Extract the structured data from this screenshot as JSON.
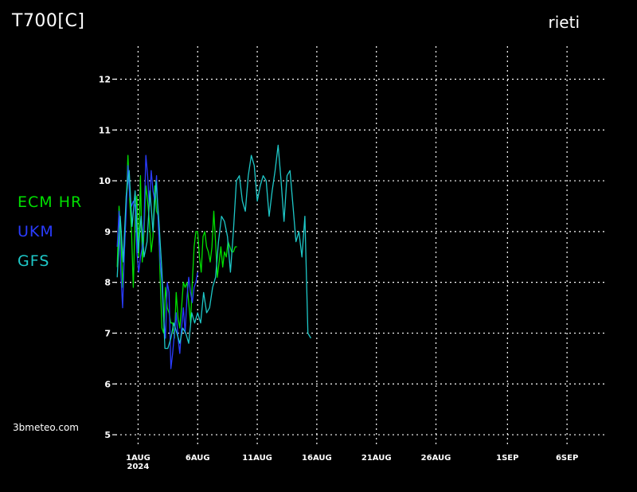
{
  "header": {
    "title": "T700[C]",
    "station": "rieti"
  },
  "credit": "3bmeteo.com",
  "colors": {
    "background": "#000000",
    "grid": "#ffffff",
    "ECM HR": "#00e000",
    "UKM": "#2a3cff",
    "GFS": "#1ec8c8"
  },
  "chart_data": {
    "type": "line",
    "title": "T700[C]",
    "xlabel": "",
    "ylabel": "",
    "x_unit": "days since reference date (ticks labelled)",
    "xlim": [
      -1.9,
      39.4
    ],
    "ylim": [
      4.75,
      12.65
    ],
    "grid": true,
    "legend": "left",
    "y_ticks": [
      5,
      6,
      7,
      8,
      9,
      10,
      11,
      12
    ],
    "x_ticks": [
      {
        "x": 0,
        "label": "1AUG",
        "sublabel": "2024"
      },
      {
        "x": 5,
        "label": "6AUG"
      },
      {
        "x": 10,
        "label": "11AUG"
      },
      {
        "x": 15,
        "label": "16AUG"
      },
      {
        "x": 20,
        "label": "21AUG"
      },
      {
        "x": 25,
        "label": "26AUG"
      },
      {
        "x": 31,
        "label": "1SEP"
      },
      {
        "x": 36,
        "label": "6SEP"
      }
    ],
    "series": [
      {
        "name": "ECM HR",
        "x": [
          -1.75,
          -1.6,
          -1.45,
          -1.3,
          -1.15,
          -1.0,
          -0.85,
          -0.7,
          -0.55,
          -0.4,
          -0.25,
          -0.1,
          0.05,
          0.2,
          0.35,
          0.5,
          0.65,
          0.8,
          0.95,
          1.1,
          1.25,
          1.4,
          1.55,
          1.7,
          1.85,
          2.0,
          2.15,
          2.3,
          2.45,
          2.6,
          2.75,
          2.9,
          3.05,
          3.2,
          3.35,
          3.5,
          3.65,
          3.8,
          3.95,
          4.1,
          4.25,
          4.4,
          4.55,
          4.7,
          4.85,
          5.0,
          5.15,
          5.3,
          5.45,
          5.6,
          5.75,
          5.9,
          6.05,
          6.2,
          6.35,
          6.5,
          6.65,
          6.8,
          6.95,
          7.1,
          7.25,
          7.4,
          7.55,
          7.7,
          7.85,
          8.0,
          8.15,
          8.3
        ],
        "y": [
          8.3,
          9.5,
          9.0,
          7.9,
          8.6,
          9.6,
          10.5,
          9.6,
          9.0,
          7.9,
          9.3,
          9.7,
          8.5,
          10.1,
          8.4,
          9.0,
          9.9,
          9.6,
          9.2,
          8.6,
          8.9,
          9.9,
          9.4,
          9.3,
          8.1,
          7.1,
          7.0,
          7.9,
          7.5,
          7.4,
          7.2,
          7.2,
          6.9,
          7.8,
          7.3,
          7.1,
          7.5,
          8.0,
          7.9,
          8.0,
          7.6,
          7.2,
          8.0,
          8.7,
          9.0,
          9.0,
          8.5,
          8.2,
          8.9,
          9.0,
          8.7,
          8.6,
          8.4,
          8.7,
          9.4,
          8.8,
          8.1,
          8.4,
          8.7,
          8.3,
          8.6,
          8.5,
          8.8,
          8.7,
          8.6,
          8.6,
          8.7,
          8.7
        ]
      },
      {
        "name": "UKM",
        "x": [
          -1.75,
          -1.6,
          -1.45,
          -1.3,
          -1.15,
          -1.0,
          -0.85,
          -0.7,
          -0.55,
          -0.4,
          -0.25,
          -0.1,
          0.05,
          0.2,
          0.35,
          0.5,
          0.65,
          0.8,
          0.95,
          1.1,
          1.25,
          1.4,
          1.55,
          1.7,
          1.85,
          2.0,
          2.15,
          2.3,
          2.45,
          2.6,
          2.75,
          2.9,
          3.05,
          3.2,
          3.35,
          3.5,
          3.65,
          3.8,
          3.95,
          4.1,
          4.25,
          4.4,
          4.55,
          4.7,
          4.85,
          5.0
        ],
        "y": [
          8.7,
          9.4,
          8.2,
          7.5,
          8.6,
          9.4,
          10.3,
          9.7,
          9.5,
          9.6,
          9.5,
          8.6,
          8.2,
          8.5,
          8.7,
          9.2,
          10.5,
          10.1,
          9.5,
          10.2,
          9.8,
          9.6,
          10.1,
          9.1,
          8.4,
          8.0,
          7.3,
          6.9,
          8.0,
          7.8,
          6.3,
          6.6,
          7.0,
          7.4,
          6.9,
          6.6,
          7.1,
          7.5,
          7.0,
          7.7,
          8.1,
          7.8,
          7.6,
          7.9,
          8.0,
          8.2
        ]
      },
      {
        "name": "GFS",
        "x": [
          -1.75,
          -1.5,
          -1.25,
          -1.0,
          -0.75,
          -0.5,
          -0.25,
          0.0,
          0.25,
          0.5,
          0.75,
          1.0,
          1.25,
          1.5,
          1.75,
          2.0,
          2.25,
          2.5,
          2.75,
          3.0,
          3.25,
          3.5,
          3.75,
          4.0,
          4.25,
          4.5,
          4.75,
          5.0,
          5.25,
          5.5,
          5.75,
          6.0,
          6.25,
          6.5,
          6.75,
          7.0,
          7.25,
          7.5,
          7.75,
          8.0,
          8.25,
          8.5,
          8.75,
          9.0,
          9.25,
          9.5,
          9.75,
          10.0,
          10.25,
          10.5,
          10.75,
          11.0,
          11.25,
          11.5,
          11.75,
          12.0,
          12.25,
          12.5,
          12.75,
          13.0,
          13.25,
          13.5,
          13.75,
          14.0,
          14.25,
          14.5
        ],
        "y": [
          8.1,
          9.3,
          8.4,
          9.7,
          10.2,
          9.1,
          9.8,
          8.6,
          9.3,
          8.5,
          8.8,
          9.8,
          9.0,
          10.0,
          9.2,
          8.2,
          6.7,
          6.7,
          6.9,
          7.2,
          7.0,
          6.8,
          7.1,
          7.0,
          6.8,
          7.4,
          7.2,
          7.4,
          7.2,
          7.8,
          7.4,
          7.5,
          7.9,
          8.1,
          8.8,
          9.3,
          9.2,
          8.9,
          8.2,
          9.0,
          10.0,
          10.1,
          9.6,
          9.4,
          10.1,
          10.5,
          10.3,
          9.6,
          9.9,
          10.1,
          10.0,
          9.3,
          9.8,
          10.2,
          10.7,
          10.0,
          9.2,
          10.1,
          10.2,
          9.5,
          8.8,
          9.0,
          8.5,
          9.3,
          7.0,
          6.9
        ]
      }
    ]
  }
}
